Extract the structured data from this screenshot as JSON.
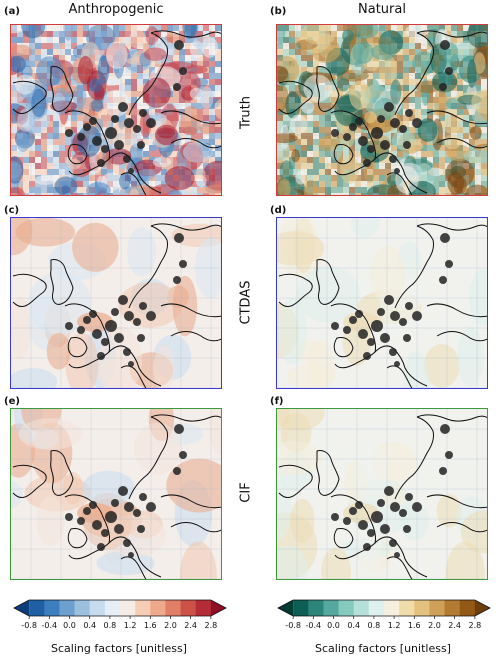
{
  "columns": [
    "Anthropogenic",
    "Natural"
  ],
  "rows": [
    "Truth",
    "CTDAS",
    "CIF"
  ],
  "panels": {
    "a": {
      "label": "(a)",
      "border": "#d23b3b"
    },
    "b": {
      "label": "(b)",
      "border": "#d23b3b"
    },
    "c": {
      "label": "(c)",
      "border": "#3a3ad0"
    },
    "d": {
      "label": "(d)",
      "border": "#3a3ad0"
    },
    "e": {
      "label": "(e)",
      "border": "#3c9a3c"
    },
    "f": {
      "label": "(f)",
      "border": "#3c9a3c"
    }
  },
  "colorbars": {
    "anthropogenic": {
      "ticks": [
        "-0.8",
        "-0.4",
        "0.0",
        "0.4",
        "0.8",
        "1.2",
        "1.6",
        "2.0",
        "2.4",
        "2.8"
      ],
      "label": "Scaling factors [unitless]",
      "colors": [
        "#0b3d7a",
        "#1f5fa6",
        "#3d7fbe",
        "#6ea0cf",
        "#9dc0df",
        "#c6dbee",
        "#e6eef6",
        "#f6ece6",
        "#f5cdb6",
        "#eea98c",
        "#e07f66",
        "#cc5149",
        "#b32c36",
        "#8f1026"
      ]
    },
    "natural": {
      "ticks": [
        "-0.8",
        "-0.4",
        "0.0",
        "0.4",
        "0.8",
        "1.2",
        "1.6",
        "2.0",
        "2.4",
        "2.8"
      ],
      "label": "Scaling factors [unitless]",
      "colors": [
        "#003c30",
        "#0d5e54",
        "#2c847a",
        "#55a89d",
        "#86c9bf",
        "#b6e1da",
        "#dff1ee",
        "#f5efdf",
        "#f0dcab",
        "#e2c27e",
        "#cfa058",
        "#b47b32",
        "#935a17",
        "#6e3e0a"
      ]
    }
  }
}
